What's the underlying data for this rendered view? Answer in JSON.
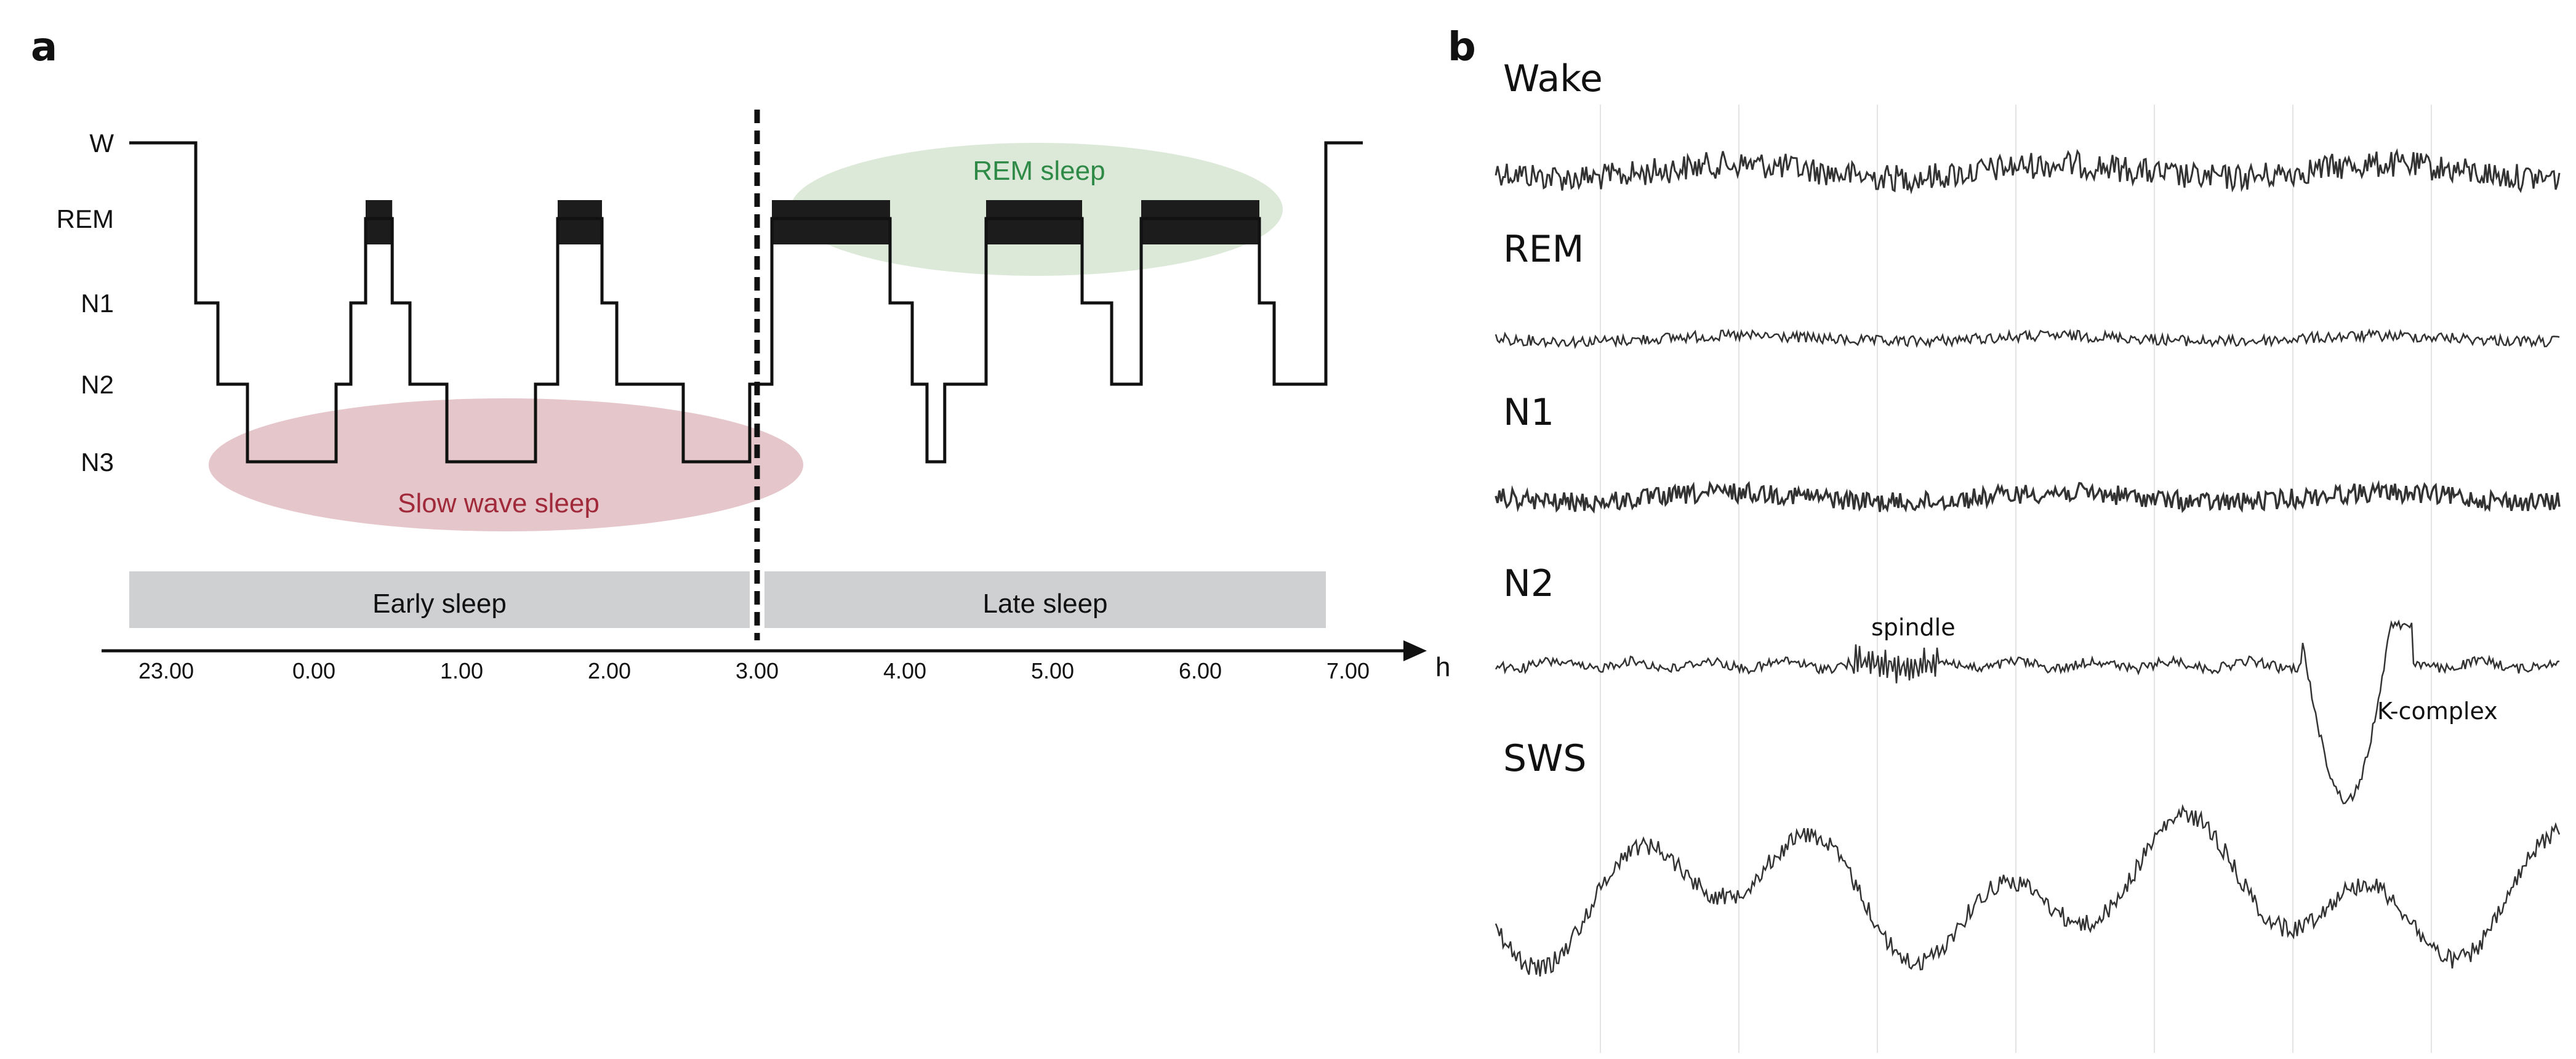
{
  "panel_a": {
    "label": "a"
  },
  "panel_b": {
    "label": "b"
  },
  "chart_data": [
    {
      "type": "line",
      "panel": "a",
      "title": "",
      "xlabel": "h",
      "ylabel": "",
      "x_ticks": [
        "23.00",
        "0.00",
        "1.00",
        "2.00",
        "3.00",
        "4.00",
        "5.00",
        "6.00",
        "7.00"
      ],
      "x_tick_values": [
        23,
        24,
        25,
        26,
        27,
        28,
        29,
        30,
        31
      ],
      "xlim": [
        22.6,
        31.5
      ],
      "stages": [
        "W",
        "REM",
        "N1",
        "N2",
        "N3"
      ],
      "stage_levels": {
        "W": 0,
        "REM": 1,
        "N1": 2,
        "N2": 3,
        "N3": 4
      },
      "hypnogram": [
        {
          "t": 22.75,
          "stage": "W"
        },
        {
          "t": 23.2,
          "stage": "N1"
        },
        {
          "t": 23.35,
          "stage": "N2"
        },
        {
          "t": 23.55,
          "stage": "N3"
        },
        {
          "t": 24.15,
          "stage": "N2"
        },
        {
          "t": 24.25,
          "stage": "N1"
        },
        {
          "t": 24.35,
          "stage": "REM"
        },
        {
          "t": 24.53,
          "stage": "N1"
        },
        {
          "t": 24.65,
          "stage": "N2"
        },
        {
          "t": 24.9,
          "stage": "N3"
        },
        {
          "t": 25.5,
          "stage": "N2"
        },
        {
          "t": 25.65,
          "stage": "REM"
        },
        {
          "t": 25.95,
          "stage": "N1"
        },
        {
          "t": 26.05,
          "stage": "N2"
        },
        {
          "t": 26.5,
          "stage": "N3"
        },
        {
          "t": 26.95,
          "stage": "N2"
        },
        {
          "t": 27.1,
          "stage": "REM"
        },
        {
          "t": 27.9,
          "stage": "N1"
        },
        {
          "t": 28.05,
          "stage": "N2"
        },
        {
          "t": 28.15,
          "stage": "N3"
        },
        {
          "t": 28.27,
          "stage": "N2"
        },
        {
          "t": 28.55,
          "stage": "REM"
        },
        {
          "t": 29.2,
          "stage": "N1"
        },
        {
          "t": 29.4,
          "stage": "N2"
        },
        {
          "t": 29.6,
          "stage": "REM"
        },
        {
          "t": 30.4,
          "stage": "N1"
        },
        {
          "t": 30.5,
          "stage": "N2"
        },
        {
          "t": 30.85,
          "stage": "W"
        },
        {
          "t": 31.1,
          "stage": "W"
        }
      ],
      "rem_blocks": [
        [
          24.35,
          24.53
        ],
        [
          25.65,
          25.95
        ],
        [
          27.1,
          27.9
        ],
        [
          28.55,
          29.2
        ],
        [
          29.6,
          30.4
        ]
      ],
      "divider_at": 27.0,
      "regions": [
        {
          "label": "Early sleep",
          "start": 23.0,
          "end": 26.95
        },
        {
          "label": "Late sleep",
          "start": 27.05,
          "end": 30.85
        }
      ],
      "annotations": [
        {
          "label": "Slow wave sleep",
          "color": "#a02a3a",
          "fill": "#e5c6cb"
        },
        {
          "label": "REM sleep",
          "color": "#2e8a46",
          "fill": "#dce9d8"
        }
      ]
    },
    {
      "type": "line",
      "panel": "b",
      "title": "",
      "traces": [
        {
          "name": "Wake"
        },
        {
          "name": "REM"
        },
        {
          "name": "N1"
        },
        {
          "name": "N2",
          "annotations": [
            "spindle",
            "K-complex"
          ]
        },
        {
          "name": "SWS"
        }
      ]
    }
  ]
}
